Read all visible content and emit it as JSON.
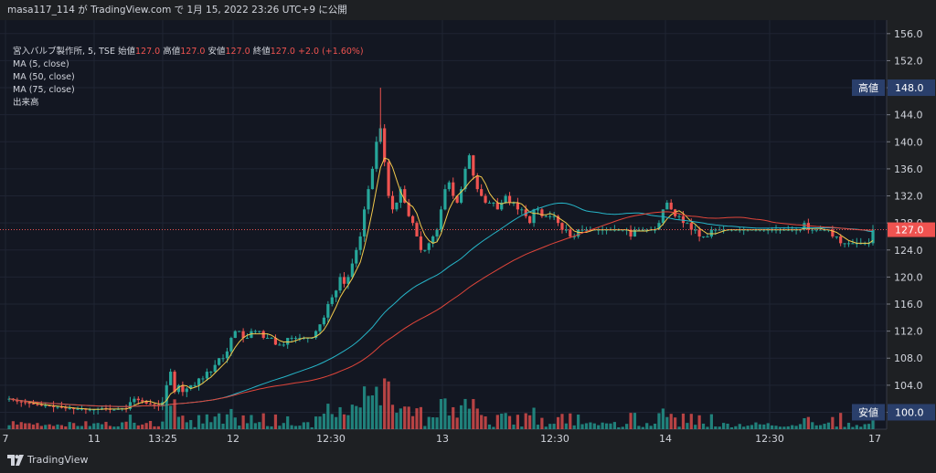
{
  "header": {
    "credit": "masa117_114 が TradingView.com で 1月 15, 2022 23:26 UTC+9 に公開"
  },
  "legend": {
    "symbol": "宮入バルブ製作所, 5, TSE",
    "open_label": "始値",
    "open_value": "127.0",
    "high_label": "高値",
    "high_value": "127.0",
    "low_label": "安値",
    "low_value": "127.0",
    "close_label": "終値",
    "close_value": "127.0",
    "change": "+2.0 (+1.60%)",
    "ma5": "MA (5, close)",
    "ma50": "MA (50, close)",
    "ma75": "MA (75, close)",
    "volume": "出来高"
  },
  "footer": {
    "brand": "TradingView"
  },
  "colors": {
    "background": "#131722",
    "up": "#26a69a",
    "down": "#ef5350",
    "ma5": "#f2c94c",
    "ma50": "#26b5c8",
    "ma75": "#e0453a",
    "axis_text": "#d1d4dc"
  },
  "chart_data": {
    "type": "candlestick",
    "title": "宮入バルブ製作所, 5, TSE",
    "y_ticks": [
      100.0,
      104.0,
      108.0,
      112.0,
      116.0,
      120.0,
      124.0,
      128.0,
      132.0,
      136.0,
      140.0,
      144.0,
      148.0,
      152.0,
      156.0
    ],
    "y_tick_labels": [
      "100.0",
      "104.0",
      "108.0",
      "112.0",
      "116.0",
      "120.0",
      "124.0",
      "128.0",
      "132.0",
      "136.0",
      "140.0",
      "144.0",
      "148.0",
      "152.0",
      "156.0"
    ],
    "ylim": [
      97.5,
      158
    ],
    "x_tick_labels": [
      "7",
      "11",
      "13:25",
      "12",
      "12:30",
      "13",
      "12:30",
      "14",
      "12:30",
      "17"
    ],
    "high_marker": {
      "label": "高値",
      "value": "148.0",
      "y": 148.0
    },
    "low_marker": {
      "label": "安値",
      "value": "100.0",
      "y": 100.0
    },
    "last_price": {
      "value": "127.0",
      "y": 127.0
    },
    "candles": {
      "note": "approximate 5-min OHLC closes read from chart",
      "closes": [
        102,
        101.8,
        101.6,
        101.5,
        101.4,
        101.3,
        101.2,
        101.1,
        101,
        101,
        100.9,
        100.8,
        100.8,
        100.7,
        100.6,
        100.6,
        100.5,
        100.5,
        100.5,
        100.4,
        100.4,
        100.4,
        100.5,
        100.6,
        100.5,
        100.4,
        100.4,
        100.5,
        100.6,
        100.5,
        101.5,
        102,
        101.8,
        101.6,
        101.3,
        101.2,
        101.1,
        101,
        101.5,
        104,
        106,
        103,
        104,
        103,
        103.5,
        104,
        104,
        105,
        105,
        106,
        106,
        107,
        108,
        108,
        109,
        111,
        112,
        112,
        111,
        111,
        112,
        112,
        112,
        111,
        111,
        111,
        110,
        110,
        110,
        111,
        111,
        111,
        111,
        111,
        111,
        111,
        112,
        113,
        114,
        116,
        117,
        118,
        120,
        119,
        120,
        122,
        124,
        126,
        130,
        133,
        136,
        140,
        142,
        137,
        132,
        130,
        131,
        133,
        131,
        129,
        128,
        126,
        124,
        124,
        125,
        126,
        127,
        130,
        133,
        134,
        132,
        131,
        133,
        136,
        138,
        135,
        133,
        132,
        131,
        131,
        131,
        130,
        131,
        132,
        131,
        131,
        130,
        130,
        129,
        128,
        130,
        130,
        129,
        129,
        129,
        129,
        128,
        127,
        127,
        126,
        126,
        127,
        127,
        127,
        127,
        127,
        127,
        127,
        127,
        127,
        127,
        127,
        127,
        127,
        126,
        127,
        127,
        127,
        127,
        127,
        127,
        128,
        130,
        131,
        130,
        129,
        129,
        128,
        128,
        127,
        127,
        126,
        126,
        126,
        127,
        127,
        127,
        127,
        127,
        127,
        127,
        127,
        127,
        127,
        127,
        127,
        127,
        127,
        127,
        127,
        127,
        127,
        127,
        127,
        127,
        127,
        127,
        128,
        127,
        127,
        127,
        127,
        127,
        127,
        126,
        126,
        125,
        125,
        125,
        125,
        125,
        125,
        125,
        125,
        127
      ]
    },
    "series": [
      {
        "name": "MA (5, close)",
        "color": "#f2c94c"
      },
      {
        "name": "MA (50, close)",
        "color": "#26b5c8"
      },
      {
        "name": "MA (75, close)",
        "color": "#e0453a"
      }
    ],
    "volume_series_name": "出来高"
  }
}
